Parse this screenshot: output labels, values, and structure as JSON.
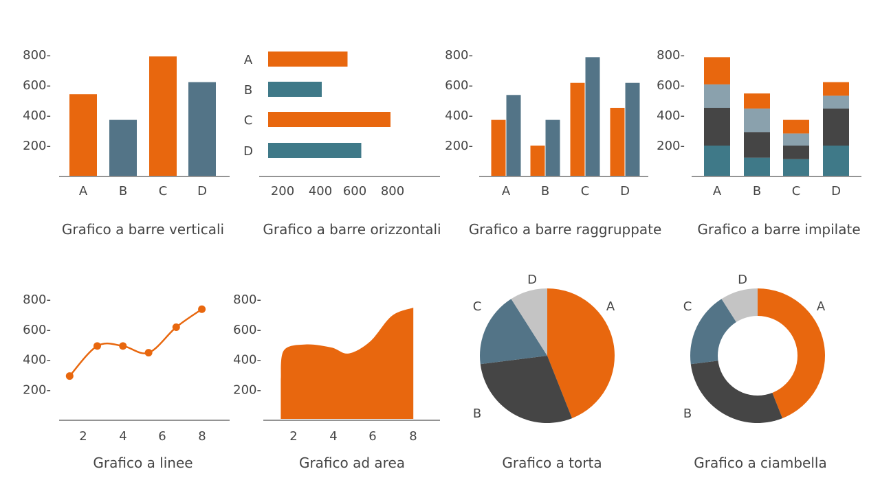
{
  "colors": {
    "orange": "#E8670E",
    "teal": "#3F7988",
    "slate": "#537487",
    "dark": "#454545",
    "light_slate": "#8AA1AD",
    "grey": "#C4C4C4",
    "text": "#444444"
  },
  "chart_data": [
    {
      "type": "bar",
      "orientation": "vertical",
      "title": "Grafico a barre verticali",
      "categories": [
        "A",
        "B",
        "C",
        "D"
      ],
      "values": [
        540,
        370,
        790,
        620
      ],
      "ylim": [
        0,
        800
      ],
      "yticks": [
        "200-",
        "400-",
        "600-",
        "800-"
      ]
    },
    {
      "type": "bar",
      "orientation": "horizontal",
      "title": "Grafico a barre orizzontali",
      "categories": [
        "A",
        "B",
        "C",
        "D"
      ],
      "values": [
        550,
        400,
        800,
        630
      ],
      "xlim": [
        100,
        1000
      ],
      "xticks": [
        "200",
        "400",
        "600",
        "800"
      ]
    },
    {
      "type": "bar",
      "grouped": true,
      "title": "Grafico a barre raggruppate",
      "categories": [
        "A",
        "B",
        "C",
        "D"
      ],
      "series": [
        {
          "values": [
            370,
            200,
            615,
            450
          ]
        },
        {
          "values": [
            535,
            370,
            785,
            615
          ]
        }
      ],
      "ylim": [
        0,
        800
      ],
      "yticks": [
        "200-",
        "400-",
        "600-",
        "800-"
      ]
    },
    {
      "type": "bar",
      "stacked": true,
      "title": "Grafico a barre impilate",
      "categories": [
        "A",
        "B",
        "C",
        "D"
      ],
      "series": [
        {
          "values": [
            200,
            120,
            110,
            200
          ]
        },
        {
          "values": [
            250,
            170,
            90,
            245
          ]
        },
        {
          "values": [
            155,
            155,
            80,
            85
          ]
        },
        {
          "values": [
            180,
            100,
            90,
            90
          ]
        }
      ],
      "ylim": [
        0,
        800
      ],
      "yticks": [
        "200-",
        "400-",
        "600-",
        "800-"
      ]
    },
    {
      "type": "line",
      "title": "Grafico a linee",
      "x": [
        1.3,
        2.7,
        4.0,
        5.3,
        6.7,
        8.0
      ],
      "y": [
        290,
        490,
        490,
        445,
        615,
        735
      ],
      "xlim": [
        0,
        9.4
      ],
      "ylim": [
        0,
        800
      ],
      "xticks": [
        "2",
        "4",
        "6",
        "8"
      ],
      "yticks": [
        "200-",
        "400-",
        "600-",
        "800-"
      ]
    },
    {
      "type": "area",
      "title": "Grafico ad area",
      "x": [
        1,
        2,
        3,
        4.2,
        5,
        6,
        7,
        8
      ],
      "y": [
        270,
        460,
        500,
        480,
        440,
        520,
        690,
        745
      ],
      "xlim": [
        0,
        9.2
      ],
      "ylim": [
        0,
        800
      ],
      "xticks": [
        "2",
        "4",
        "6",
        "8"
      ],
      "yticks": [
        "200-",
        "400-",
        "600-",
        "800-"
      ]
    },
    {
      "type": "pie",
      "title": "Grafico a torta",
      "labels": [
        "A",
        "B",
        "C",
        "D"
      ],
      "values": [
        44,
        29,
        18,
        9
      ]
    },
    {
      "type": "pie",
      "donut": true,
      "title": "Grafico a ciambella",
      "labels": [
        "A",
        "B",
        "C",
        "D"
      ],
      "values": [
        44,
        29,
        18,
        9
      ]
    }
  ]
}
